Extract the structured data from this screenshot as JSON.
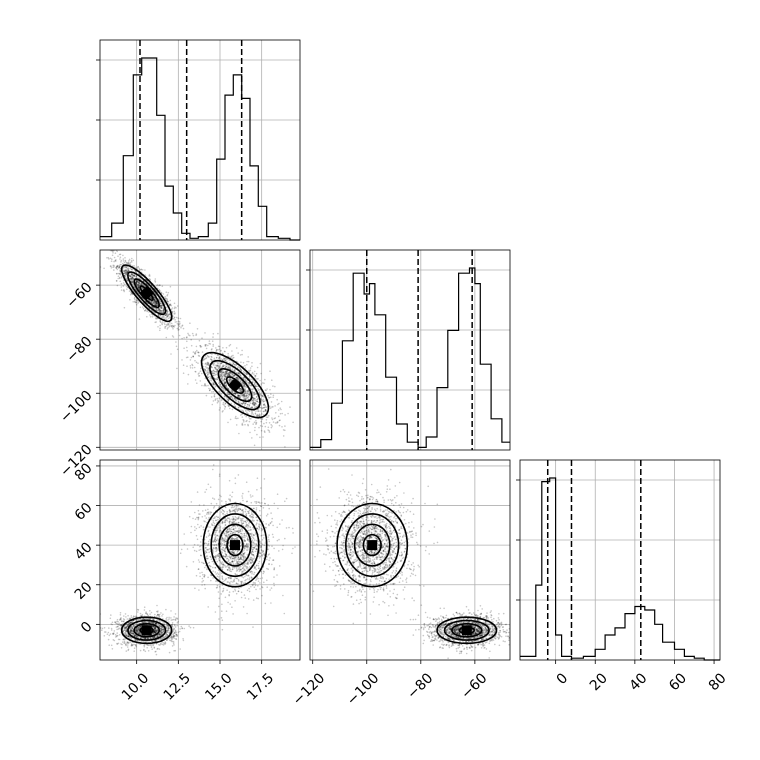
{
  "chart_data": {
    "type": "corner",
    "parameters": [
      {
        "name": "",
        "range": [
          7.8,
          19.8
        ],
        "ticks": [
          10.0,
          12.5,
          15.0,
          17.5
        ],
        "tick_labels": [
          "10.0",
          "12.5",
          "15.0",
          "17.5"
        ],
        "quantiles": [
          10.2,
          13.0,
          16.3
        ],
        "histogram": {
          "edges": [
            7.8,
            8.5,
            9.2,
            9.8,
            10.3,
            10.7,
            11.2,
            11.7,
            12.2,
            12.7,
            13.2,
            13.7,
            14.3,
            14.8,
            15.3,
            15.8,
            16.3,
            16.8,
            17.3,
            17.8,
            18.5,
            19.2,
            19.8
          ],
          "counts": [
            1,
            5,
            25,
            49,
            54,
            54,
            37,
            16,
            8,
            2,
            0.5,
            1,
            5,
            24,
            43,
            49,
            42,
            22,
            10,
            1,
            0.5,
            0
          ]
        }
      },
      {
        "name": "",
        "range": [
          -121,
          -47
        ],
        "ticks": [
          -120,
          -100,
          -80,
          -60
        ],
        "tick_labels": [
          "−120",
          "−100",
          "−80",
          "−60"
        ],
        "quantiles": [
          -100,
          -81,
          -61
        ],
        "histogram": {
          "edges": [
            -121,
            -117,
            -113,
            -109,
            -105,
            -101,
            -99,
            -97,
            -93,
            -89,
            -85,
            -81,
            -78,
            -74,
            -70,
            -66,
            -62,
            -60,
            -58,
            -54,
            -50,
            -47
          ],
          "counts": [
            1,
            4,
            18,
            42,
            68,
            60,
            64,
            52,
            28,
            10,
            3,
            1,
            5,
            24,
            46,
            68,
            70,
            64,
            33,
            12,
            3
          ]
        }
      },
      {
        "name": "",
        "range": [
          -18,
          83
        ],
        "ticks": [
          0,
          20,
          40,
          60,
          80
        ],
        "tick_labels": [
          "0",
          "20",
          "40",
          "60",
          "80"
        ],
        "quantiles": [
          -4,
          8,
          43
        ],
        "histogram": {
          "edges": [
            -18,
            -10,
            -7,
            -3,
            0,
            3,
            8,
            14,
            20,
            25,
            30,
            35,
            40,
            45,
            50,
            54,
            60,
            65,
            70,
            75,
            83
          ],
          "counts": [
            1,
            21,
            50,
            51,
            7,
            1,
            0.5,
            1,
            3,
            7,
            9,
            13,
            15,
            14,
            10,
            5,
            3,
            1,
            0.5,
            0
          ]
        }
      }
    ],
    "density_clusters": [
      {
        "param_x": 0,
        "param_y": 1,
        "center": [
          10.6,
          -63
        ],
        "sigma": [
          0.75,
          5.2
        ],
        "corr": -0.85,
        "n": 1700
      },
      {
        "param_x": 0,
        "param_y": 1,
        "center": [
          15.9,
          -97
        ],
        "sigma": [
          1.0,
          6.0
        ],
        "corr": -0.7,
        "n": 1700
      },
      {
        "param_x": 0,
        "param_y": 2,
        "center": [
          10.6,
          -3
        ],
        "sigma": [
          0.75,
          3.3
        ],
        "corr": 0,
        "n": 1700
      },
      {
        "param_x": 0,
        "param_y": 2,
        "center": [
          15.9,
          40
        ],
        "sigma": [
          0.95,
          10.5
        ],
        "corr": 0,
        "n": 1700
      },
      {
        "param_x": 1,
        "param_y": 2,
        "center": [
          -98,
          40
        ],
        "sigma": [
          6.5,
          10.5
        ],
        "corr": 0,
        "n": 1700
      },
      {
        "param_x": 1,
        "param_y": 2,
        "center": [
          -63,
          -3
        ],
        "sigma": [
          5.5,
          3.3
        ],
        "corr": 0,
        "n": 1700
      }
    ],
    "contour_levels_sigma": [
      0.5,
      1.0,
      1.5,
      2.0
    ],
    "grid": true
  }
}
